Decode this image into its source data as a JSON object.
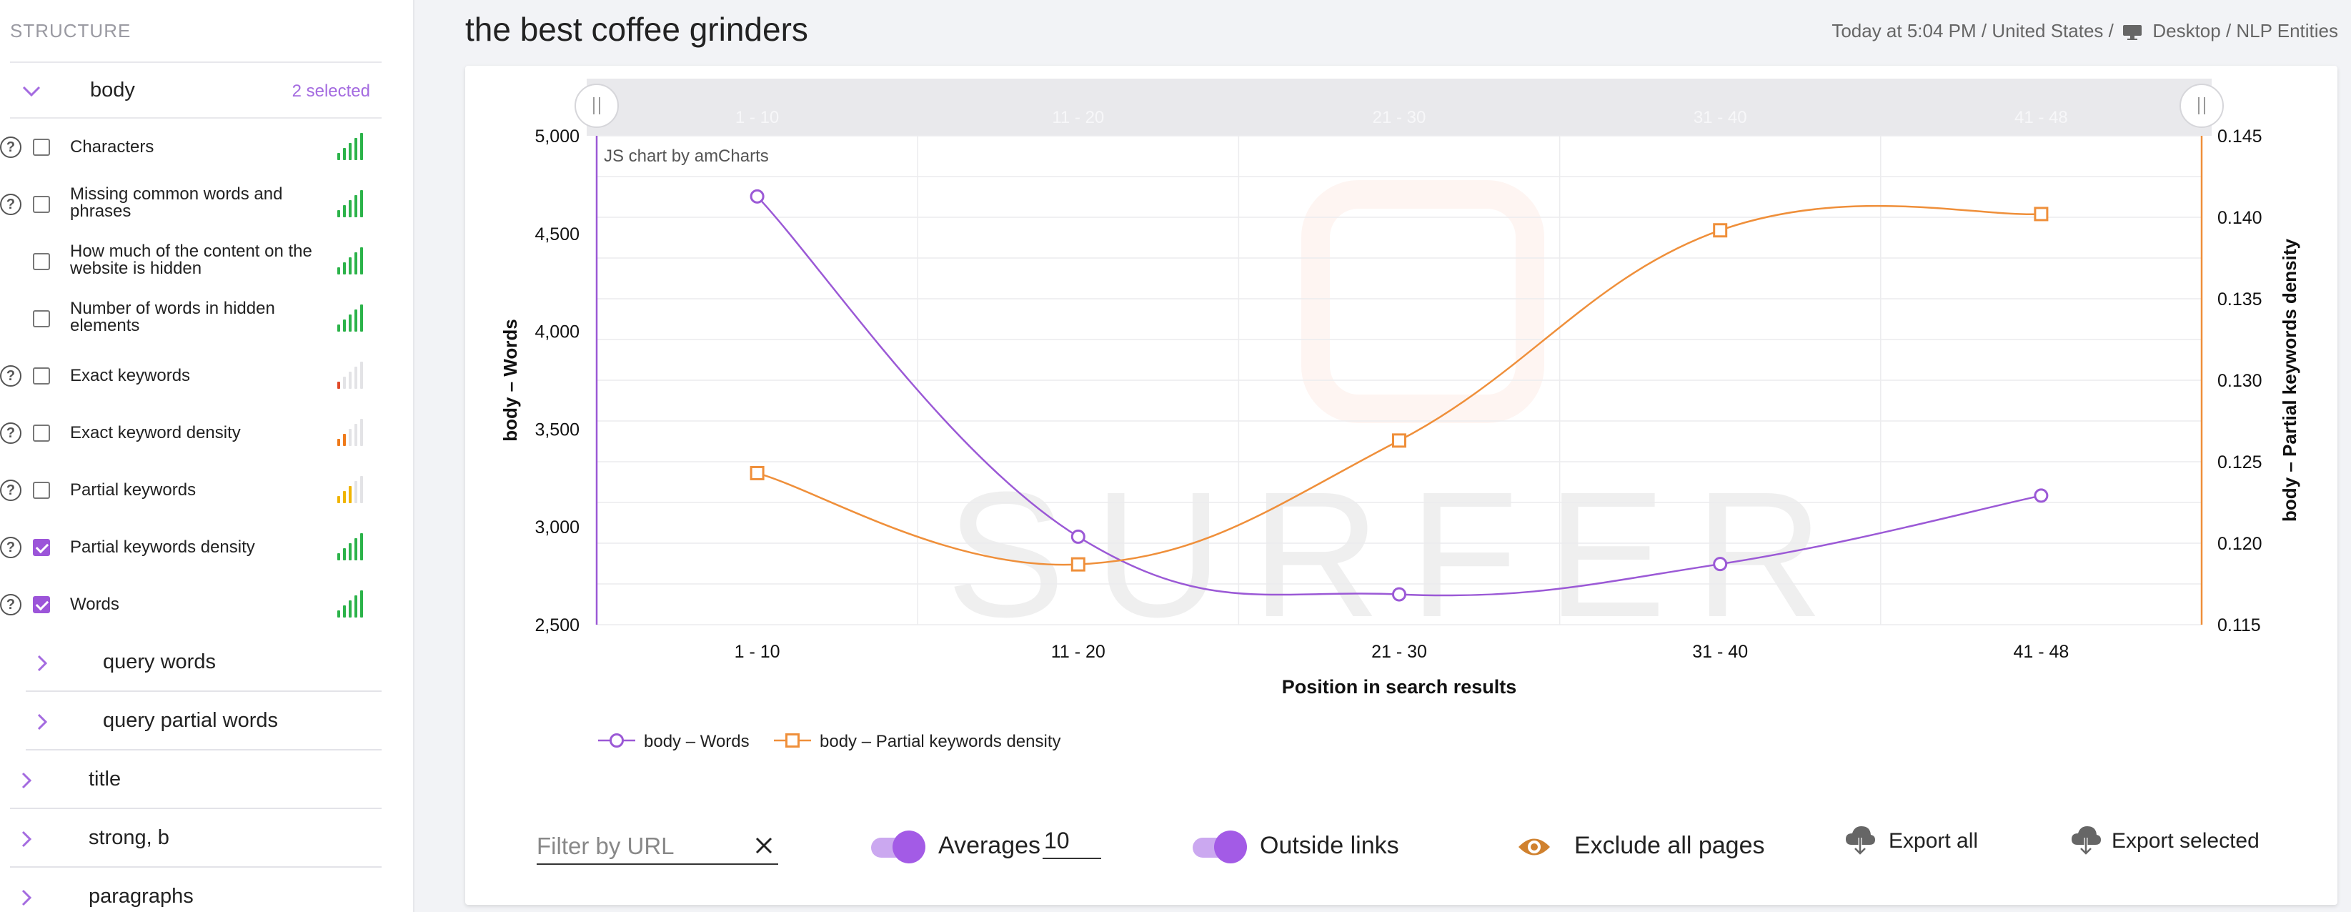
{
  "sidebar": {
    "heading": "STRUCTURE",
    "body_group": {
      "label": "body",
      "selected": "2 selected"
    },
    "metrics": [
      {
        "label": "Characters",
        "help": true,
        "checked": false,
        "strength": 5,
        "color": "#2cb34a"
      },
      {
        "label": "Missing common words and phrases",
        "help": true,
        "checked": false,
        "strength": 5,
        "color": "#2cb34a"
      },
      {
        "label": "How much of the content on the website is hidden",
        "help": false,
        "checked": false,
        "strength": 5,
        "color": "#2cb34a"
      },
      {
        "label": "Number of words in hidden elements",
        "help": false,
        "checked": false,
        "strength": 5,
        "color": "#2cb34a"
      },
      {
        "label": "Exact keywords",
        "help": true,
        "checked": false,
        "strength": 1,
        "color": "#e04a2a"
      },
      {
        "label": "Exact keyword density",
        "help": true,
        "checked": false,
        "strength": 2,
        "color": "#ef7a1a"
      },
      {
        "label": "Partial keywords",
        "help": true,
        "checked": false,
        "strength": 3,
        "color": "#f0b400"
      },
      {
        "label": "Partial keywords density",
        "help": true,
        "checked": true,
        "strength": 5,
        "color": "#2cb34a"
      },
      {
        "label": "Words",
        "help": true,
        "checked": true,
        "strength": 5,
        "color": "#2cb34a"
      }
    ],
    "subgroups": [
      {
        "label": "query words"
      },
      {
        "label": "query partial words"
      }
    ],
    "groups": [
      {
        "label": "title"
      },
      {
        "label": "strong, b"
      },
      {
        "label": "paragraphs"
      }
    ]
  },
  "header": {
    "title": "the best coffee grinders",
    "meta_prefix": "Today at 5:04 PM / United States /",
    "meta_suffix": "Desktop / NLP Entities"
  },
  "chart_data": {
    "type": "line",
    "credit": "JS chart by amCharts",
    "watermark": "SURFER",
    "categories": [
      "1 - 10",
      "11 - 20",
      "21 - 30",
      "31 - 40",
      "41 - 48"
    ],
    "xlabel": "Position in search results",
    "ylabel_left": "body – Words",
    "ylabel_right": "body – Partial keywords density",
    "ylim_left": [
      2500,
      5000
    ],
    "ylim_right": [
      0.115,
      0.145
    ],
    "yticks_left": [
      "5,000",
      "4,500",
      "4,000",
      "3,500",
      "3,000",
      "2,500"
    ],
    "yticks_right": [
      "0.145",
      "0.140",
      "0.135",
      "0.130",
      "0.125",
      "0.120",
      "0.115"
    ],
    "grid": true,
    "legend_position": "bottom-left",
    "series": [
      {
        "name": "body – Words",
        "axis": "left",
        "color": "#9b59d6",
        "marker": "circle",
        "values": [
          4690,
          2950,
          2655,
          2810,
          3160
        ]
      },
      {
        "name": "body – Partial keywords density",
        "axis": "right",
        "color": "#ef8f3a",
        "marker": "square",
        "values": [
          0.1243,
          0.1187,
          0.1263,
          0.1392,
          0.1402
        ]
      }
    ]
  },
  "controls": {
    "filter_placeholder": "Filter by URL",
    "averages_label": "Averages",
    "averages_value": "10",
    "outside_links_label": "Outside links",
    "exclude_label": "Exclude all pages",
    "export_all_label": "Export all",
    "export_selected_label": "Export selected"
  },
  "colors": {
    "accent": "#9b59d6",
    "series_orange": "#ef8f3a",
    "eye_icon": "#d0812e"
  }
}
